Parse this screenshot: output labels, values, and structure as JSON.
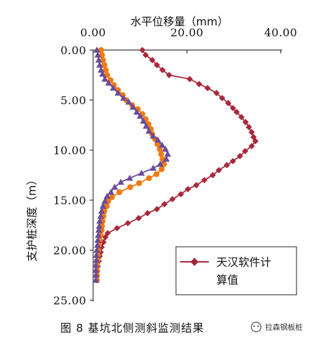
{
  "chart_data": {
    "type": "line",
    "orientation": "depth-down",
    "xlabel": "水平位移量（mm）",
    "ylabel": "支护桩深度（m）",
    "xlim": [
      0,
      40
    ],
    "ylim": [
      0,
      25
    ],
    "y_inverted": true,
    "x_axis_position": "top",
    "xticks": [
      "0.00",
      "20.00",
      "40.00"
    ],
    "yticks": [
      "0.00",
      "5.00",
      "10.00",
      "15.00",
      "20.00",
      "25.00"
    ],
    "grid": false,
    "legend_position": "bottom-right",
    "series": [
      {
        "name": "天汉软件计算值",
        "color": "#A8283C",
        "marker": "diamond",
        "points": [
          [
            10.5,
            0.0
          ],
          [
            11.2,
            0.5
          ],
          [
            12.6,
            1.0
          ],
          [
            13.6,
            1.5
          ],
          [
            14.8,
            2.0
          ],
          [
            16.2,
            2.5
          ],
          [
            20.6,
            2.9
          ],
          [
            22.6,
            3.4
          ],
          [
            24.4,
            3.8
          ],
          [
            26.3,
            4.3
          ],
          [
            27.5,
            4.8
          ],
          [
            28.8,
            5.3
          ],
          [
            29.8,
            5.8
          ],
          [
            30.6,
            6.2
          ],
          [
            31.6,
            6.7
          ],
          [
            32.5,
            7.2
          ],
          [
            33.2,
            7.7
          ],
          [
            33.8,
            8.2
          ],
          [
            34.2,
            8.7
          ],
          [
            34.6,
            9.1
          ],
          [
            33.8,
            9.6
          ],
          [
            32.4,
            10.1
          ],
          [
            31.3,
            10.6
          ],
          [
            29.8,
            11.1
          ],
          [
            28.5,
            11.5
          ],
          [
            26.8,
            12.0
          ],
          [
            25.5,
            12.5
          ],
          [
            23.7,
            13.0
          ],
          [
            22.0,
            13.5
          ],
          [
            20.2,
            13.9
          ],
          [
            18.7,
            14.4
          ],
          [
            16.9,
            14.9
          ],
          [
            15.2,
            15.4
          ],
          [
            13.6,
            15.9
          ],
          [
            11.6,
            16.3
          ],
          [
            9.7,
            16.8
          ],
          [
            7.4,
            17.3
          ],
          [
            5.1,
            17.8
          ],
          [
            3.1,
            18.3
          ],
          [
            2.6,
            18.7
          ],
          [
            2.2,
            19.2
          ],
          [
            1.8,
            19.7
          ],
          [
            1.6,
            20.2
          ],
          [
            1.4,
            20.6
          ],
          [
            1.2,
            21.1
          ],
          [
            1.0,
            21.6
          ],
          [
            0.9,
            22.1
          ],
          [
            0.8,
            22.6
          ],
          [
            0.8,
            23.0
          ]
        ]
      },
      {
        "name": "",
        "color": "#F07A10",
        "marker": "circle",
        "points": [
          [
            1.7,
            0.0
          ],
          [
            1.9,
            0.5
          ],
          [
            2.1,
            1.0
          ],
          [
            2.4,
            1.5
          ],
          [
            2.7,
            2.0
          ],
          [
            3.0,
            2.5
          ],
          [
            3.7,
            3.0
          ],
          [
            4.4,
            3.5
          ],
          [
            5.3,
            4.0
          ],
          [
            6.3,
            4.5
          ],
          [
            7.1,
            5.0
          ],
          [
            8.3,
            5.5
          ],
          [
            9.5,
            5.9
          ],
          [
            10.5,
            6.4
          ],
          [
            11.2,
            6.9
          ],
          [
            11.8,
            7.4
          ],
          [
            12.3,
            7.9
          ],
          [
            12.6,
            8.4
          ],
          [
            13.2,
            8.9
          ],
          [
            13.7,
            9.4
          ],
          [
            14.2,
            9.9
          ],
          [
            14.5,
            10.4
          ],
          [
            14.8,
            10.9
          ],
          [
            15.1,
            11.4
          ],
          [
            14.6,
            11.9
          ],
          [
            13.5,
            12.4
          ],
          [
            11.9,
            12.8
          ],
          [
            9.8,
            13.3
          ],
          [
            7.9,
            13.7
          ],
          [
            5.6,
            14.2
          ],
          [
            4.0,
            14.7
          ],
          [
            3.2,
            15.1
          ],
          [
            2.9,
            15.6
          ],
          [
            2.4,
            16.1
          ],
          [
            2.2,
            16.6
          ],
          [
            2.0,
            17.1
          ],
          [
            1.9,
            17.6
          ],
          [
            1.8,
            18.0
          ],
          [
            1.6,
            18.5
          ],
          [
            1.4,
            19.0
          ],
          [
            1.2,
            19.5
          ],
          [
            1.1,
            20.0
          ],
          [
            1.0,
            20.5
          ],
          [
            0.9,
            21.0
          ],
          [
            0.8,
            21.5
          ],
          [
            0.8,
            22.0
          ],
          [
            0.8,
            22.5
          ],
          [
            0.8,
            23.0
          ]
        ]
      },
      {
        "name": "",
        "color": "#6A4C9C",
        "marker": "triangle",
        "points": [
          [
            0.8,
            0.0
          ],
          [
            1.0,
            0.5
          ],
          [
            1.2,
            1.0
          ],
          [
            1.4,
            1.5
          ],
          [
            1.7,
            2.0
          ],
          [
            2.0,
            2.4
          ],
          [
            2.5,
            2.9
          ],
          [
            3.3,
            3.3
          ],
          [
            4.3,
            3.8
          ],
          [
            5.3,
            4.3
          ],
          [
            6.5,
            4.8
          ],
          [
            7.6,
            5.2
          ],
          [
            8.5,
            5.7
          ],
          [
            9.3,
            6.2
          ],
          [
            10.0,
            6.6
          ],
          [
            10.7,
            7.1
          ],
          [
            11.3,
            7.6
          ],
          [
            11.9,
            8.1
          ],
          [
            12.8,
            8.6
          ],
          [
            13.8,
            9.0
          ],
          [
            14.7,
            9.5
          ],
          [
            15.4,
            9.9
          ],
          [
            15.9,
            10.4
          ],
          [
            15.6,
            10.9
          ],
          [
            14.3,
            11.4
          ],
          [
            12.8,
            11.8
          ],
          [
            10.3,
            12.3
          ],
          [
            7.8,
            12.8
          ],
          [
            5.9,
            13.2
          ],
          [
            4.6,
            13.7
          ],
          [
            3.8,
            14.2
          ],
          [
            3.0,
            14.6
          ],
          [
            2.5,
            15.1
          ],
          [
            2.1,
            15.6
          ],
          [
            1.8,
            16.1
          ],
          [
            1.6,
            16.6
          ],
          [
            1.4,
            17.1
          ],
          [
            1.3,
            17.6
          ],
          [
            1.2,
            18.0
          ],
          [
            1.1,
            18.5
          ],
          [
            1.0,
            19.0
          ],
          [
            0.9,
            19.5
          ],
          [
            0.8,
            20.0
          ],
          [
            0.7,
            20.5
          ],
          [
            0.7,
            21.0
          ],
          [
            0.6,
            21.5
          ],
          [
            0.6,
            22.0
          ],
          [
            0.6,
            22.5
          ],
          [
            0.6,
            23.0
          ]
        ]
      }
    ]
  },
  "legend": {
    "line1": "天汉软件计",
    "line2": "算值"
  },
  "caption": "图 8  基坑北侧测斜监测结果",
  "watermark": "拉森钢板桩"
}
